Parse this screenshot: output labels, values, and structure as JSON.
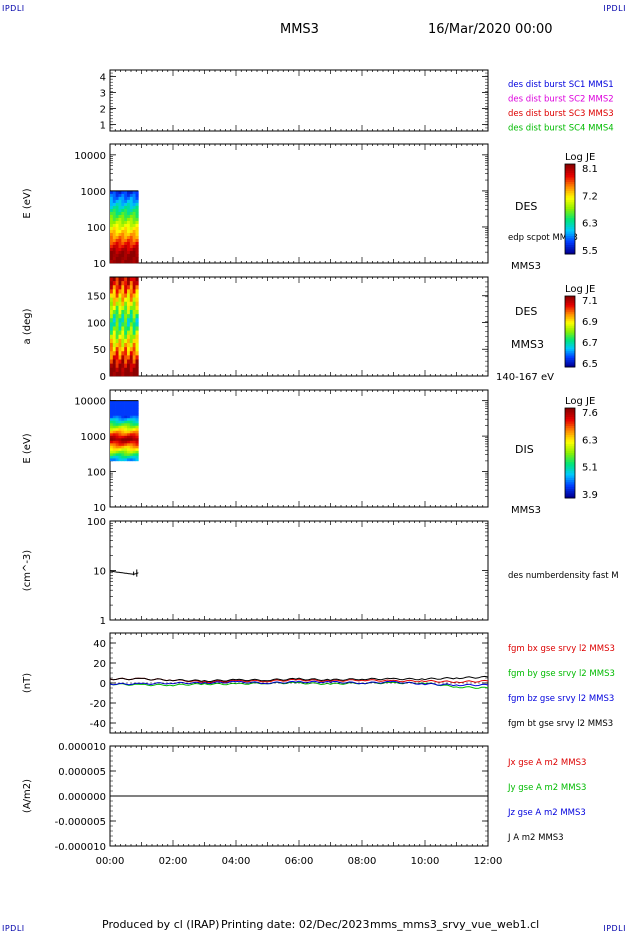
{
  "header": {
    "corner_tl": "IPDLI",
    "corner_tr": "IPDLI",
    "corner_bl": "IPDLI",
    "corner_br": "IPDLI",
    "spacecraft": "MMS3",
    "date": "16/Mar/2020 00:00"
  },
  "footer": {
    "produced_by": "Produced by cl (IRAP)",
    "printing_date": "Printing date: 02/Dec/2023",
    "script": "mms_mms3_srvy_vue_web1.cl"
  },
  "colors": {
    "blue": "#0000dd",
    "magenta": "#dd00dd",
    "red": "#dd0000",
    "green": "#00bb00",
    "black": "#000000"
  },
  "chart_data": [
    {
      "type": "line",
      "panel": "spacecraft-indicator",
      "ylabel": "",
      "ylim": [
        0.6,
        4.4
      ],
      "yticks": [
        "1",
        "2",
        "3",
        "4"
      ],
      "legend": [
        {
          "label": "des dist burst SC1 MMS1",
          "color": "#0000dd"
        },
        {
          "label": "des dist burst SC2 MMS2",
          "color": "#dd00dd"
        },
        {
          "label": "des dist burst SC3 MMS3",
          "color": "#dd0000"
        },
        {
          "label": "des dist burst SC4 MMS4",
          "color": "#00bb00"
        }
      ]
    },
    {
      "type": "heatmap",
      "panel": "des-energy-spectrogram",
      "ylabel": "E (eV)",
      "yscale": "log",
      "ylim": [
        10,
        20000
      ],
      "yticks": [
        "10",
        "100",
        "1000",
        "10000"
      ],
      "data_interval_hours": [
        0,
        0.9
      ],
      "data_energy_range_ev": [
        10,
        1000
      ],
      "right_label": "DES",
      "right_sublabel": "edp scpot MMS3",
      "right_bottom_label": "MMS3",
      "colorbar": {
        "title": "Log JE",
        "ticks": [
          "8.1",
          "7.2",
          "6.3",
          "5.5"
        ]
      }
    },
    {
      "type": "heatmap",
      "panel": "des-pitch-angle",
      "ylabel": "a (deg)",
      "ylim": [
        0,
        185
      ],
      "yticks": [
        "0",
        "50",
        "100",
        "150"
      ],
      "data_interval_hours": [
        0,
        0.9
      ],
      "right_label": "DES",
      "right_sublabel": "MMS3",
      "right_bottom_label": "140-167 eV",
      "colorbar": {
        "title": "Log JE",
        "ticks": [
          "7.1",
          "6.9",
          "6.7",
          "6.5"
        ]
      }
    },
    {
      "type": "heatmap",
      "panel": "dis-energy-spectrogram",
      "ylabel": "E (eV)",
      "yscale": "log",
      "ylim": [
        10,
        20000
      ],
      "yticks": [
        "10",
        "100",
        "1000",
        "10000"
      ],
      "data_interval_hours": [
        0,
        0.9
      ],
      "data_energy_range_ev": [
        200,
        10000
      ],
      "right_label": "DIS",
      "right_bottom_label": "MMS3",
      "colorbar": {
        "title": "Log JE",
        "ticks": [
          "7.6",
          "6.3",
          "5.1",
          "3.9"
        ]
      }
    },
    {
      "type": "line",
      "panel": "density",
      "ylabel": "(cm^-3)",
      "yscale": "log",
      "ylim": [
        1,
        100
      ],
      "yticks": [
        "1",
        "10",
        "100"
      ],
      "series": [
        {
          "name": "des numberdensity fast M",
          "color": "#000000",
          "x": [
            0.0,
            0.2,
            0.4,
            0.6,
            0.75,
            0.85,
            0.9
          ],
          "y": [
            9.8,
            9.3,
            9.0,
            8.6,
            8.4,
            8.7,
            9.0
          ]
        }
      ]
    },
    {
      "type": "line",
      "panel": "magnetic-field",
      "ylabel": "(nT)",
      "ylim": [
        -50,
        50
      ],
      "yticks": [
        "-40",
        "-20",
        "0",
        "20",
        "40"
      ],
      "series": [
        {
          "name": "fgm bx gse srvy l2 MMS3",
          "color": "#dd0000",
          "x": [
            0,
            1,
            2,
            3,
            4,
            5,
            6,
            7,
            8,
            9,
            10,
            11,
            12
          ],
          "y": [
            4,
            4,
            3,
            1,
            2,
            2,
            3,
            2,
            3,
            2,
            2,
            1,
            2
          ]
        },
        {
          "name": "fgm by gse srvy l2 MMS3",
          "color": "#00bb00",
          "x": [
            0,
            1,
            2,
            3,
            4,
            5,
            6,
            7,
            8,
            9,
            10,
            11,
            12
          ],
          "y": [
            -1,
            -2,
            -2,
            -1,
            -1,
            0,
            0,
            -1,
            0,
            0,
            0,
            -4,
            -5
          ]
        },
        {
          "name": "fgm bz gse srvy l2 MMS3",
          "color": "#0000dd",
          "x": [
            0,
            1,
            2,
            3,
            4,
            5,
            6,
            7,
            8,
            9,
            10,
            11,
            12
          ],
          "y": [
            -1,
            -1,
            0,
            0,
            1,
            0,
            1,
            1,
            0,
            1,
            -1,
            -2,
            -2
          ]
        },
        {
          "name": "fgm bt gse srvy l2 MMS3",
          "color": "#000000",
          "x": [
            0,
            1,
            2,
            3,
            4,
            5,
            6,
            7,
            8,
            9,
            10,
            11,
            12
          ],
          "y": [
            4,
            4,
            3,
            2,
            3,
            3,
            4,
            3,
            4,
            4,
            4,
            5,
            6
          ]
        }
      ]
    },
    {
      "type": "line",
      "panel": "current-density",
      "ylabel": "(A/m2)",
      "ylim": [
        -1e-05,
        1e-05
      ],
      "yticks": [
        "-0.000010",
        "-0.000005",
        "0.000000",
        "0.000005",
        "0.000010"
      ],
      "series": [
        {
          "name": "Jx gse A m2 MMS3",
          "color": "#dd0000",
          "x": [
            0,
            12
          ],
          "y": [
            0,
            0
          ]
        },
        {
          "name": "Jy gse A m2 MMS3",
          "color": "#00bb00",
          "x": [
            0,
            12
          ],
          "y": [
            0,
            0
          ]
        },
        {
          "name": "Jz gse A m2 MMS3",
          "color": "#0000dd",
          "x": [
            0,
            12
          ],
          "y": [
            0,
            0
          ]
        },
        {
          "name": "J A m2 MMS3",
          "color": "#000000",
          "x": [
            0,
            12
          ],
          "y": [
            0,
            0
          ]
        }
      ]
    }
  ],
  "time_axis": {
    "range_hours": [
      0,
      12
    ],
    "ticks": [
      "00:00",
      "02:00",
      "04:00",
      "06:00",
      "08:00",
      "10:00",
      "12:00"
    ]
  }
}
